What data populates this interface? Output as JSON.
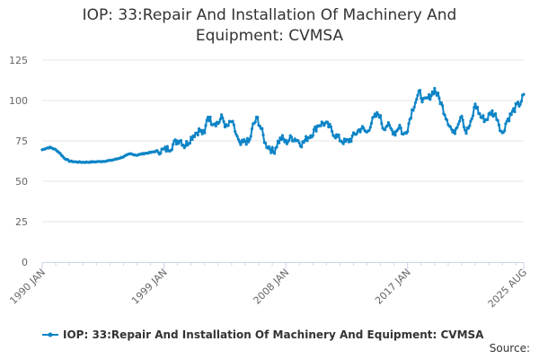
{
  "chart_data": {
    "type": "line",
    "title": "IOP: 33:Repair And Installation Of Machinery And Equipment: CVMSA",
    "title_lines": [
      "IOP: 33:Repair And Installation Of Machinery And",
      "Equipment: CVMSA"
    ],
    "xlabel": "",
    "ylabel": "",
    "ylim": [
      0,
      125
    ],
    "yticks": [
      0,
      25,
      50,
      75,
      100,
      125
    ],
    "x_tick_labels": [
      "1990 JAN",
      "1999 JAN",
      "2008 JAN",
      "2017 JAN",
      "2025 AUG"
    ],
    "x_tick_years": [
      1990.0,
      1999.0,
      2008.0,
      2017.0,
      2025.583
    ],
    "x_range": [
      1990.0,
      2025.583
    ],
    "grid": true,
    "legend_position": "bottom",
    "series_color": "#0d84c6",
    "source_label": "Source:",
    "series": [
      {
        "name": "IOP: 33:Repair And Installation Of Machinery And Equipment: CVMSA",
        "anchors": [
          [
            1990.0,
            69.5
          ],
          [
            1990.3,
            70.5
          ],
          [
            1990.6,
            71.0
          ],
          [
            1991.0,
            69.5
          ],
          [
            1991.3,
            67.5
          ],
          [
            1991.6,
            64.5
          ],
          [
            1992.0,
            62.5
          ],
          [
            1992.5,
            62.0
          ],
          [
            1993.0,
            61.8
          ],
          [
            1993.5,
            61.9
          ],
          [
            1994.0,
            62.1
          ],
          [
            1994.5,
            62.4
          ],
          [
            1995.0,
            62.8
          ],
          [
            1995.5,
            63.8
          ],
          [
            1996.0,
            65.2
          ],
          [
            1996.5,
            67.0
          ],
          [
            1997.0,
            66.2
          ],
          [
            1997.5,
            67.2
          ],
          [
            1998.0,
            67.8
          ],
          [
            1998.5,
            68.8
          ],
          [
            1999.0,
            69.2
          ],
          [
            1999.5,
            71.0
          ],
          [
            1999.8,
            74.0
          ],
          [
            2000.2,
            76.0
          ],
          [
            2000.5,
            72.0
          ],
          [
            2000.8,
            74.5
          ],
          [
            2001.2,
            79.0
          ],
          [
            2001.6,
            81.5
          ],
          [
            2002.0,
            79.0
          ],
          [
            2002.2,
            91.0
          ],
          [
            2002.5,
            87.0
          ],
          [
            2003.0,
            86.0
          ],
          [
            2003.3,
            90.0
          ],
          [
            2003.6,
            83.0
          ],
          [
            2004.0,
            87.0
          ],
          [
            2004.3,
            80.0
          ],
          [
            2004.6,
            72.0
          ],
          [
            2005.0,
            75.0
          ],
          [
            2005.3,
            74.0
          ],
          [
            2005.6,
            85.0
          ],
          [
            2005.9,
            89.0
          ],
          [
            2006.2,
            82.0
          ],
          [
            2006.5,
            73.0
          ],
          [
            2006.8,
            71.0
          ],
          [
            2007.1,
            68.0
          ],
          [
            2007.4,
            74.0
          ],
          [
            2007.7,
            77.0
          ],
          [
            2008.0,
            74.0
          ],
          [
            2008.4,
            77.0
          ],
          [
            2008.8,
            76.0
          ],
          [
            2009.2,
            73.0
          ],
          [
            2009.6,
            77.0
          ],
          [
            2010.0,
            80.0
          ],
          [
            2010.4,
            85.0
          ],
          [
            2010.8,
            86.0
          ],
          [
            2011.2,
            84.0
          ],
          [
            2011.6,
            79.0
          ],
          [
            2012.0,
            76.0
          ],
          [
            2012.4,
            74.0
          ],
          [
            2012.8,
            76.0
          ],
          [
            2013.2,
            80.0
          ],
          [
            2013.6,
            83.0
          ],
          [
            2014.0,
            80.0
          ],
          [
            2014.3,
            86.0
          ],
          [
            2014.6,
            90.0
          ],
          [
            2014.9,
            92.0
          ],
          [
            2015.2,
            83.0
          ],
          [
            2015.5,
            85.0
          ],
          [
            2015.8,
            82.0
          ],
          [
            2016.1,
            80.0
          ],
          [
            2016.4,
            85.0
          ],
          [
            2016.7,
            78.0
          ],
          [
            2017.0,
            83.0
          ],
          [
            2017.3,
            93.0
          ],
          [
            2017.6,
            100.0
          ],
          [
            2017.9,
            105.0
          ],
          [
            2018.2,
            99.0
          ],
          [
            2018.6,
            102.0
          ],
          [
            2019.0,
            107.0
          ],
          [
            2019.4,
            100.0
          ],
          [
            2019.8,
            91.0
          ],
          [
            2020.1,
            85.0
          ],
          [
            2020.4,
            79.0
          ],
          [
            2020.7,
            86.0
          ],
          [
            2021.0,
            92.0
          ],
          [
            2021.3,
            80.0
          ],
          [
            2021.7,
            86.0
          ],
          [
            2022.0,
            98.0
          ],
          [
            2022.4,
            90.0
          ],
          [
            2022.8,
            88.0
          ],
          [
            2023.2,
            93.0
          ],
          [
            2023.6,
            90.0
          ],
          [
            2024.0,
            79.0
          ],
          [
            2024.3,
            87.0
          ],
          [
            2024.7,
            92.0
          ],
          [
            2025.0,
            96.0
          ],
          [
            2025.3,
            98.0
          ],
          [
            2025.583,
            103.0
          ]
        ]
      }
    ]
  }
}
